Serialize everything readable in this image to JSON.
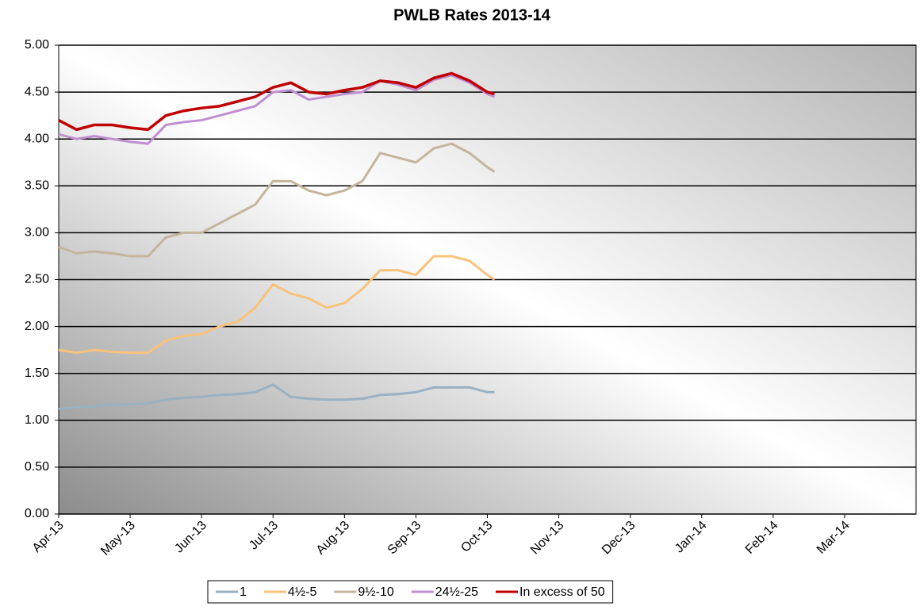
{
  "chart_data": {
    "type": "line",
    "title": "PWLB Rates 2013-14",
    "x": [
      0,
      0.25,
      0.5,
      0.75,
      1,
      1.25,
      1.5,
      1.75,
      2,
      2.25,
      2.5,
      2.75,
      3,
      3.25,
      3.5,
      3.75,
      4,
      4.25,
      4.5,
      4.75,
      5,
      5.25,
      5.5,
      5.75,
      6,
      6.1
    ],
    "xlim": [
      0,
      12
    ],
    "xticks": [
      {
        "value": 0,
        "label": "Apr-13"
      },
      {
        "value": 1,
        "label": "May-13"
      },
      {
        "value": 2,
        "label": "Jun-13"
      },
      {
        "value": 3,
        "label": "Jul-13"
      },
      {
        "value": 4,
        "label": "Aug-13"
      },
      {
        "value": 5,
        "label": "Sep-13"
      },
      {
        "value": 6,
        "label": "Oct-13"
      },
      {
        "value": 7,
        "label": "Nov-13"
      },
      {
        "value": 8,
        "label": "Dec-13"
      },
      {
        "value": 9,
        "label": "Jan-14"
      },
      {
        "value": 10,
        "label": "Feb-14"
      },
      {
        "value": 11,
        "label": "Mar-14"
      }
    ],
    "ylim": [
      0,
      5
    ],
    "yticks": [
      {
        "value": 0,
        "label": "0.00"
      },
      {
        "value": 0.5,
        "label": "0.50"
      },
      {
        "value": 1,
        "label": "1.00"
      },
      {
        "value": 1.5,
        "label": "1.50"
      },
      {
        "value": 2,
        "label": "2.00"
      },
      {
        "value": 2.5,
        "label": "2.50"
      },
      {
        "value": 3,
        "label": "3.00"
      },
      {
        "value": 3.5,
        "label": "3.50"
      },
      {
        "value": 4,
        "label": "4.00"
      },
      {
        "value": 4.5,
        "label": "4.50"
      },
      {
        "value": 5,
        "label": "5.00"
      }
    ],
    "grid": true,
    "legend": "bottom",
    "series": [
      {
        "name": "1",
        "color": "#98b2c4",
        "values": [
          1.12,
          1.14,
          1.15,
          1.17,
          1.17,
          1.18,
          1.22,
          1.24,
          1.25,
          1.27,
          1.28,
          1.3,
          1.38,
          1.25,
          1.23,
          1.22,
          1.22,
          1.23,
          1.27,
          1.28,
          1.3,
          1.35,
          1.35,
          1.35,
          1.3,
          1.3
        ]
      },
      {
        "name": "4½-5",
        "color": "#f9c27a",
        "values": [
          1.75,
          1.72,
          1.75,
          1.73,
          1.72,
          1.72,
          1.85,
          1.9,
          1.92,
          2.0,
          2.05,
          2.2,
          2.45,
          2.35,
          2.3,
          2.2,
          2.25,
          2.4,
          2.6,
          2.6,
          2.55,
          2.75,
          2.75,
          2.7,
          2.55,
          2.5
        ]
      },
      {
        "name": "9½-10",
        "color": "#c4b59b",
        "values": [
          2.85,
          2.78,
          2.8,
          2.78,
          2.75,
          2.75,
          2.95,
          3.0,
          3.0,
          3.1,
          3.2,
          3.3,
          3.55,
          3.55,
          3.45,
          3.4,
          3.45,
          3.55,
          3.85,
          3.8,
          3.75,
          3.9,
          3.95,
          3.85,
          3.7,
          3.65
        ]
      },
      {
        "name": "24½-25",
        "color": "#c08fd0",
        "values": [
          4.05,
          4.0,
          4.03,
          4.0,
          3.97,
          3.95,
          4.15,
          4.18,
          4.2,
          4.25,
          4.3,
          4.35,
          4.5,
          4.52,
          4.42,
          4.45,
          4.48,
          4.5,
          4.62,
          4.58,
          4.52,
          4.63,
          4.68,
          4.6,
          4.48,
          4.45
        ]
      },
      {
        "name": "In excess of 50",
        "color": "#c00000",
        "values": [
          4.2,
          4.1,
          4.15,
          4.15,
          4.12,
          4.1,
          4.25,
          4.3,
          4.33,
          4.35,
          4.4,
          4.45,
          4.55,
          4.6,
          4.5,
          4.48,
          4.52,
          4.55,
          4.62,
          4.6,
          4.55,
          4.65,
          4.7,
          4.62,
          4.5,
          4.48
        ]
      }
    ]
  }
}
